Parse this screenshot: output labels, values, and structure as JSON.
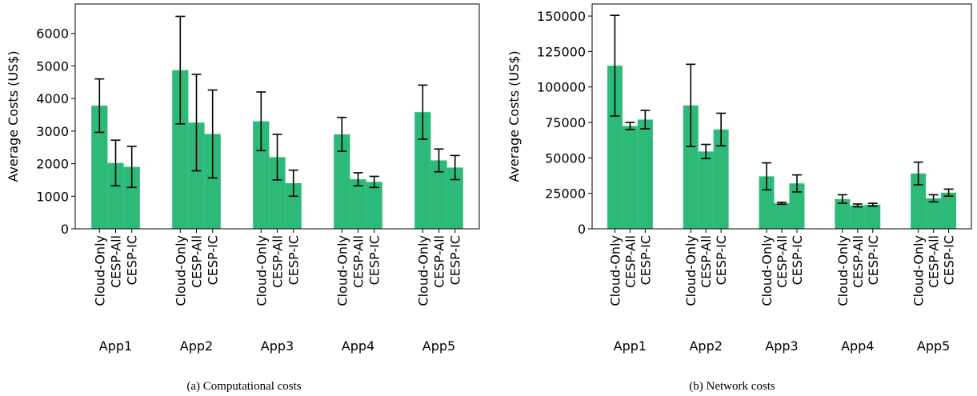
{
  "chart_data": [
    {
      "type": "bar",
      "caption": "(a) Computational costs",
      "ylabel": "Average Costs (US$)",
      "groups": [
        "App1",
        "App2",
        "App3",
        "App4",
        "App5"
      ],
      "series": [
        {
          "name": "Cloud-Only",
          "color": "#2dba78",
          "values": [
            3780,
            4870,
            3300,
            2900,
            3580
          ],
          "errors": [
            820,
            1650,
            900,
            520,
            830
          ]
        },
        {
          "name": "CESP-All",
          "color": "#2dba78",
          "values": [
            2020,
            3260,
            2200,
            1520,
            2100
          ],
          "errors": [
            700,
            1480,
            700,
            200,
            350
          ]
        },
        {
          "name": "CESP-IC",
          "color": "#2dba78",
          "values": [
            1900,
            2910,
            1400,
            1440,
            1880
          ],
          "errors": [
            630,
            1350,
            400,
            170,
            370
          ]
        }
      ],
      "ylim": [
        0,
        6900
      ],
      "yticks": [
        0,
        1000,
        2000,
        3000,
        4000,
        5000,
        6000
      ]
    },
    {
      "type": "bar",
      "caption": "(b) Network costs",
      "ylabel": "Average Costs (US$)",
      "groups": [
        "App1",
        "App2",
        "App3",
        "App4",
        "App5"
      ],
      "series": [
        {
          "name": "Cloud-Only",
          "color": "#2dba78",
          "values": [
            115000,
            87000,
            37000,
            21000,
            39000
          ],
          "errors": [
            35500,
            29000,
            9500,
            3000,
            8000
          ]
        },
        {
          "name": "CESP-All",
          "color": "#2dba78",
          "values": [
            72500,
            54500,
            18000,
            16500,
            21500
          ],
          "errors": [
            2500,
            5000,
            700,
            1000,
            2500
          ]
        },
        {
          "name": "CESP-IC",
          "color": "#2dba78",
          "values": [
            77000,
            70000,
            32000,
            17000,
            25500
          ],
          "errors": [
            6500,
            11500,
            6000,
            1000,
            2500
          ]
        }
      ],
      "ylim": [
        0,
        158500
      ],
      "yticks": [
        0,
        25000,
        50000,
        75000,
        100000,
        125000,
        150000
      ]
    }
  ]
}
